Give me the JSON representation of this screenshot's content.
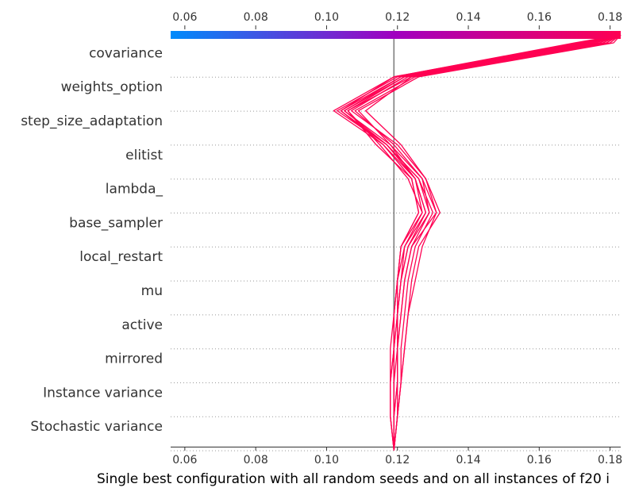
{
  "chart_data": {
    "type": "line",
    "title": "",
    "xlabel": "Single best configuration with all random seeds and on all instances of f20 i",
    "ylabel": "",
    "xlim": [
      0.056,
      0.183
    ],
    "xticks": [
      "0.06",
      "0.08",
      "0.10",
      "0.12",
      "0.14",
      "0.16",
      "0.18"
    ],
    "xtick_values": [
      0.06,
      0.08,
      0.1,
      0.12,
      0.14,
      0.16,
      0.18
    ],
    "base_value": 0.119,
    "features": [
      "covariance",
      "weights_option",
      "step_size_adaptation",
      "elitist",
      "lambda_",
      "base_sampler",
      "local_restart",
      "mu",
      "active",
      "mirrored",
      "Instance variance",
      "Stochastic variance"
    ],
    "colorbar": {
      "from": "#008bfb",
      "mid": "#a100bf",
      "to": "#ff0052"
    },
    "line_color": "#ff0052",
    "series": [
      {
        "values": [
          0.119,
          0.119,
          0.119,
          0.119,
          0.12,
          0.121,
          0.123,
          0.129,
          0.126,
          0.117,
          0.103,
          0.12,
          0.172,
          0.183
        ]
      },
      {
        "values": [
          0.119,
          0.12,
          0.12,
          0.12,
          0.121,
          0.122,
          0.124,
          0.131,
          0.127,
          0.118,
          0.105,
          0.121,
          0.175,
          0.183
        ]
      },
      {
        "values": [
          0.119,
          0.118,
          0.118,
          0.119,
          0.119,
          0.12,
          0.122,
          0.127,
          0.125,
          0.116,
          0.102,
          0.119,
          0.17,
          0.183
        ]
      },
      {
        "values": [
          0.119,
          0.12,
          0.121,
          0.122,
          0.123,
          0.124,
          0.126,
          0.132,
          0.128,
          0.12,
          0.107,
          0.123,
          0.178,
          0.183
        ]
      },
      {
        "values": [
          0.119,
          0.118,
          0.118,
          0.118,
          0.119,
          0.12,
          0.121,
          0.126,
          0.124,
          0.114,
          0.106,
          0.122,
          0.176,
          0.183
        ]
      },
      {
        "values": [
          0.119,
          0.119,
          0.12,
          0.12,
          0.121,
          0.122,
          0.124,
          0.129,
          0.127,
          0.119,
          0.108,
          0.125,
          0.18,
          0.183
        ]
      },
      {
        "values": [
          0.119,
          0.12,
          0.121,
          0.121,
          0.122,
          0.123,
          0.125,
          0.13,
          0.126,
          0.117,
          0.104,
          0.121,
          0.173,
          0.183
        ]
      },
      {
        "values": [
          0.119,
          0.119,
          0.119,
          0.119,
          0.12,
          0.12,
          0.121,
          0.127,
          0.123,
          0.115,
          0.106,
          0.124,
          0.179,
          0.183
        ]
      },
      {
        "values": [
          0.119,
          0.119,
          0.12,
          0.12,
          0.12,
          0.121,
          0.123,
          0.128,
          0.125,
          0.118,
          0.109,
          0.126,
          0.181,
          0.183
        ]
      },
      {
        "values": [
          0.119,
          0.12,
          0.121,
          0.122,
          0.123,
          0.125,
          0.127,
          0.131,
          0.128,
          0.121,
          0.111,
          0.124,
          0.177,
          0.183
        ]
      },
      {
        "values": [
          0.119,
          0.118,
          0.118,
          0.119,
          0.119,
          0.12,
          0.121,
          0.126,
          0.124,
          0.116,
          0.104,
          0.119,
          0.171,
          0.183
        ]
      },
      {
        "values": [
          0.119,
          0.119,
          0.119,
          0.12,
          0.12,
          0.121,
          0.122,
          0.128,
          0.125,
          0.117,
          0.105,
          0.122,
          0.174,
          0.183
        ]
      }
    ]
  }
}
